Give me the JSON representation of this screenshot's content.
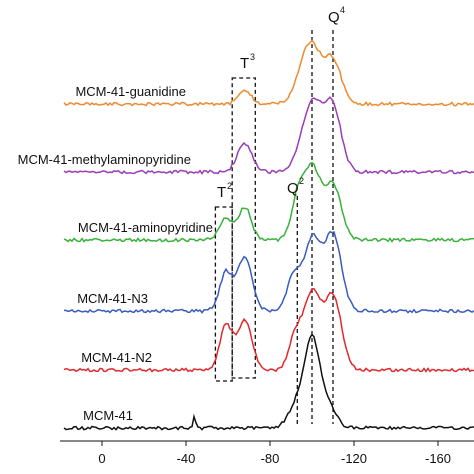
{
  "chart_data": {
    "type": "line",
    "title": "",
    "xlabel": "",
    "ylabel": "",
    "xlim": [
      0,
      -180
    ],
    "x_ticks": [
      "0",
      "-40",
      "-80",
      "-120",
      "-160"
    ],
    "x_tick_values": [
      0,
      -40,
      -80,
      -120,
      -160
    ],
    "grid": false,
    "legend": "none",
    "series": [
      {
        "name": "MCM-41-guanidine",
        "color": "#ee8a2e",
        "peaks": [
          {
            "x": -68,
            "h": 0.2,
            "w": 3
          },
          {
            "x": -99,
            "h": 0.85,
            "w": 5
          },
          {
            "x": -110,
            "h": 0.58,
            "w": 4
          }
        ]
      },
      {
        "name": "MCM-41-methylaminopyridine",
        "color": "#9a3db5",
        "peaks": [
          {
            "x": -68,
            "h": 0.38,
            "w": 3.5
          },
          {
            "x": -100,
            "h": 0.92,
            "w": 5
          },
          {
            "x": -110,
            "h": 0.82,
            "w": 4
          }
        ]
      },
      {
        "name": "MCM-41-aminopyridine",
        "color": "#38b23a",
        "peaks": [
          {
            "x": -59,
            "h": 0.3,
            "w": 3
          },
          {
            "x": -68,
            "h": 0.44,
            "w": 3
          },
          {
            "x": -93,
            "h": 0.5,
            "w": 3
          },
          {
            "x": -100,
            "h": 0.95,
            "w": 4
          },
          {
            "x": -110,
            "h": 0.72,
            "w": 4
          }
        ]
      },
      {
        "name": "MCM-41-N3",
        "color": "#3a5bbf",
        "peaks": [
          {
            "x": -59,
            "h": 0.48,
            "w": 3
          },
          {
            "x": -68,
            "h": 0.68,
            "w": 3.5
          },
          {
            "x": -91,
            "h": 0.42,
            "w": 3
          },
          {
            "x": -100,
            "h": 0.9,
            "w": 4
          },
          {
            "x": -110,
            "h": 0.95,
            "w": 4
          }
        ]
      },
      {
        "name": "MCM-41-N2",
        "color": "#e0292e",
        "peaks": [
          {
            "x": -59,
            "h": 0.55,
            "w": 3
          },
          {
            "x": -68,
            "h": 0.62,
            "w": 3.5
          },
          {
            "x": -92,
            "h": 0.4,
            "w": 3
          },
          {
            "x": -100,
            "h": 0.95,
            "w": 4
          },
          {
            "x": -110,
            "h": 0.92,
            "w": 4
          }
        ]
      },
      {
        "name": "MCM-41",
        "color": "#111111",
        "peaks": [
          {
            "x": -44,
            "h": 0.15,
            "w": 0.6
          },
          {
            "x": -93,
            "h": 0.3,
            "w": 4
          },
          {
            "x": -100,
            "h": 1.0,
            "w": 3.5
          },
          {
            "x": -107,
            "h": 0.3,
            "w": 4
          }
        ]
      }
    ],
    "annotations": {
      "T3": {
        "main": "T",
        "sup": "3"
      },
      "T2": {
        "main": "T",
        "sup": "2"
      },
      "Q2": {
        "main": "Q",
        "sup": "2"
      },
      "Q4": {
        "main": "Q",
        "sup": "4"
      }
    },
    "dashed_lines_x": [
      -93,
      -100,
      -110
    ],
    "boxes": [
      {
        "name": "T3",
        "x_from": -62,
        "x_to": -73
      },
      {
        "name": "T2",
        "x_from": -54,
        "x_to": -62
      }
    ]
  }
}
